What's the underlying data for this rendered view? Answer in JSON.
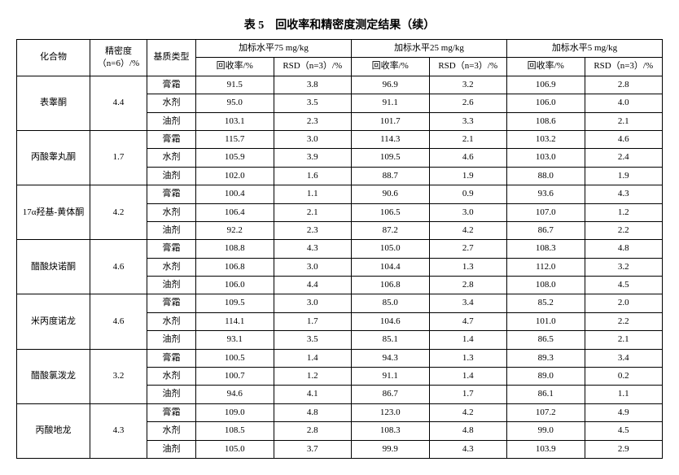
{
  "title": "表 5　回收率和精密度测定结果（续）",
  "headers": {
    "compound": "化合物",
    "precision": "精密度（n=6）/%",
    "matrix": "基质类型",
    "level75": "加标水平75 mg/kg",
    "level25": "加标水平25 mg/kg",
    "level5": "加标水平5 mg/kg",
    "recovery": "回收率/%",
    "rsd": "RSD（n=3）/%"
  },
  "matrix_labels": [
    "膏霜",
    "水剂",
    "油剂"
  ],
  "rows": [
    {
      "compound": "表睾酮",
      "precision": "4.4",
      "data": [
        [
          "91.5",
          "3.8",
          "96.9",
          "3.2",
          "106.9",
          "2.8"
        ],
        [
          "95.0",
          "3.5",
          "91.1",
          "2.6",
          "106.0",
          "4.0"
        ],
        [
          "103.1",
          "2.3",
          "101.7",
          "3.3",
          "108.6",
          "2.1"
        ]
      ]
    },
    {
      "compound": "丙酸睾丸酮",
      "precision": "1.7",
      "data": [
        [
          "115.7",
          "3.0",
          "114.3",
          "2.1",
          "103.2",
          "4.6"
        ],
        [
          "105.9",
          "3.9",
          "109.5",
          "4.6",
          "103.0",
          "2.4"
        ],
        [
          "102.0",
          "1.6",
          "88.7",
          "1.9",
          "88.0",
          "1.9"
        ]
      ]
    },
    {
      "compound": "17α羟基-黄体酮",
      "precision": "4.2",
      "data": [
        [
          "100.4",
          "1.1",
          "90.6",
          "0.9",
          "93.6",
          "4.3"
        ],
        [
          "106.4",
          "2.1",
          "106.5",
          "3.0",
          "107.0",
          "1.2"
        ],
        [
          "92.2",
          "2.3",
          "87.2",
          "4.2",
          "86.7",
          "2.2"
        ]
      ]
    },
    {
      "compound": "醋酸炔诺酮",
      "precision": "4.6",
      "data": [
        [
          "108.8",
          "4.3",
          "105.0",
          "2.7",
          "108.3",
          "4.8"
        ],
        [
          "106.8",
          "3.0",
          "104.4",
          "1.3",
          "112.0",
          "3.2"
        ],
        [
          "106.0",
          "4.4",
          "106.8",
          "2.8",
          "108.0",
          "4.5"
        ]
      ]
    },
    {
      "compound": "米丙度诺龙",
      "precision": "4.6",
      "data": [
        [
          "109.5",
          "3.0",
          "85.0",
          "3.4",
          "85.2",
          "2.0"
        ],
        [
          "114.1",
          "1.7",
          "104.6",
          "4.7",
          "101.0",
          "2.2"
        ],
        [
          "93.1",
          "3.5",
          "85.1",
          "1.4",
          "86.5",
          "2.1"
        ]
      ]
    },
    {
      "compound": "醋酸氯泼龙",
      "precision": "3.2",
      "data": [
        [
          "100.5",
          "1.4",
          "94.3",
          "1.3",
          "89.3",
          "3.4"
        ],
        [
          "100.7",
          "1.2",
          "91.1",
          "1.4",
          "89.0",
          "0.2"
        ],
        [
          "94.6",
          "4.1",
          "86.7",
          "1.7",
          "86.1",
          "1.1"
        ]
      ]
    },
    {
      "compound": "丙酸地龙",
      "precision": "4.3",
      "data": [
        [
          "109.0",
          "4.8",
          "123.0",
          "4.2",
          "107.2",
          "4.9"
        ],
        [
          "108.5",
          "2.8",
          "108.3",
          "4.8",
          "99.0",
          "4.5"
        ],
        [
          "105.0",
          "3.7",
          "99.9",
          "4.3",
          "103.9",
          "2.9"
        ]
      ]
    }
  ]
}
